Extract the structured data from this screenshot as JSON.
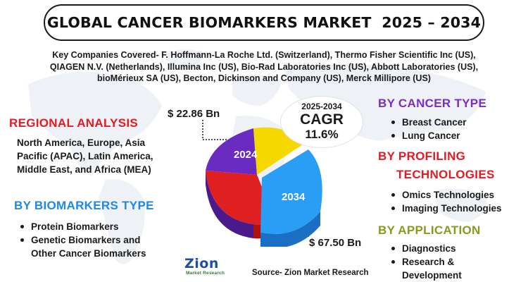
{
  "header": {
    "title": "GLOBAL CANCER BIOMARKERS MARKET  2025 – 2034"
  },
  "companies": {
    "line1": "Key Companies Covered- F. Hoffmann-La Roche Ltd. (Switzerland), Thermo Fisher Scientific Inc (US),",
    "line2": "QIAGEN N.V. (Netherlands), Illumina Inc (US), Bio-Rad Laboratories Inc (US), Abbott Laboratories (US),",
    "line3": "bioMérieux SA (US), Becton, Dickinson and Company (US), Merck Millipore (US)"
  },
  "regional": {
    "heading": "REGIONAL ANALYSIS",
    "line1": "North America, Europe, Asia",
    "line2": "Pacific (APAC), Latin America,",
    "line3": "Middle East, and Africa (MEA)"
  },
  "biomarkers_type": {
    "heading": "BY BIOMARKERS TYPE",
    "items": [
      "Protein Biomarkers",
      "Genetic Biomarkers and",
      "Other Cancer Biomarkers"
    ]
  },
  "market": {
    "value_2024": "$ 22.86 Bn",
    "value_2034": "$ 67.50 Bn",
    "label_2024": "2024",
    "label_2034": "2034"
  },
  "cagr": {
    "years": "2025-2034",
    "label": "CAGR",
    "value": "11.6%"
  },
  "cancer_type": {
    "heading": "BY CANCER TYPE",
    "items": [
      "Breast Cancer",
      "Lung Cancer"
    ]
  },
  "profiling": {
    "heading_line1": "BY PROFILING",
    "heading_line2": "TECHNOLOGIES",
    "items": [
      "Omics Technologies",
      "Imaging Technologies"
    ]
  },
  "application": {
    "heading": "BY APPLICATION",
    "items": [
      "Diagnostics",
      "Research &",
      "Development"
    ]
  },
  "footer": {
    "source": "Source- Zion Market Research",
    "logo_main": "Zion",
    "logo_sub": "Market Research"
  },
  "colors": {
    "red": "#e31b23",
    "purple": "#7b2fbe",
    "blue": "#1e88e5",
    "olive": "#8a9a1c",
    "pie_yellow": "#f5d800",
    "pie_purple": "#6a2bc0",
    "pie_red": "#e02020",
    "pie_blue": "#2a9df4"
  }
}
